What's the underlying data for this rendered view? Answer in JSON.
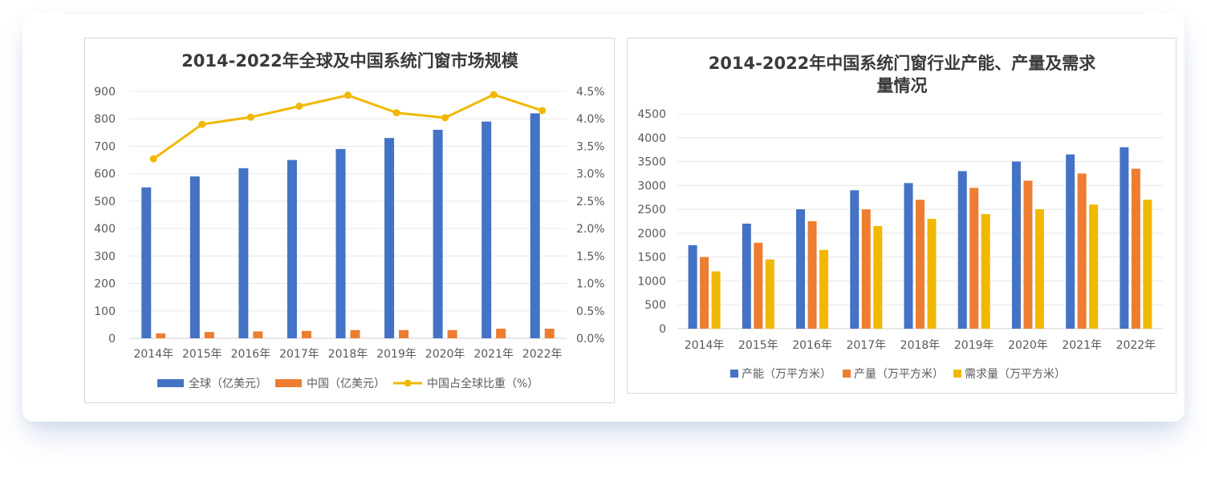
{
  "chart_data": [
    {
      "type": "bar",
      "title": "2014-2022年全球及中国系统门窗市场规模",
      "categories": [
        "2014年",
        "2015年",
        "2016年",
        "2017年",
        "2018年",
        "2019年",
        "2020年",
        "2021年",
        "2022年"
      ],
      "series": [
        {
          "name": "全球（亿美元）",
          "type": "bar",
          "axis": "left",
          "color": "#4472C4",
          "values": [
            550,
            590,
            620,
            650,
            690,
            730,
            760,
            790,
            820
          ]
        },
        {
          "name": "中国（亿美元）",
          "type": "bar",
          "axis": "left",
          "color": "#ED7D31",
          "values": [
            18,
            23,
            25,
            27,
            30,
            30,
            30,
            35,
            35
          ]
        },
        {
          "name": "中国占全球比重（%）",
          "type": "line",
          "axis": "right",
          "color": "#F0B800",
          "values": [
            3.27,
            3.9,
            4.03,
            4.23,
            4.43,
            4.11,
            4.02,
            4.44,
            4.15
          ]
        }
      ],
      "ylim": [
        0,
        900
      ],
      "y_ticks": [
        "0",
        "100",
        "200",
        "300",
        "400",
        "500",
        "600",
        "700",
        "800",
        "900"
      ],
      "y2lim": [
        0,
        4.5
      ],
      "y2_ticks": [
        "0.0%",
        "0.5%",
        "1.0%",
        "1.5%",
        "2.0%",
        "2.5%",
        "3.0%",
        "3.5%",
        "4.0%",
        "4.5%"
      ],
      "grid": true,
      "legend": "bottom"
    },
    {
      "type": "bar",
      "title": "2014-2022年中国系统门窗行业产能、产量及需求量情况",
      "title_lines": [
        "2014-2022年中国系统门窗行业产能、产量及需求",
        "量情况"
      ],
      "categories": [
        "2014年",
        "2015年",
        "2016年",
        "2017年",
        "2018年",
        "2019年",
        "2020年",
        "2021年",
        "2022年"
      ],
      "series": [
        {
          "name": "产能（万平方米）",
          "color": "#4472C4",
          "values": [
            1750,
            2200,
            2500,
            2900,
            3050,
            3300,
            3500,
            3650,
            3800
          ]
        },
        {
          "name": "产量（万平方米）",
          "color": "#ED7D31",
          "values": [
            1500,
            1800,
            2250,
            2500,
            2700,
            2950,
            3100,
            3250,
            3350
          ]
        },
        {
          "name": "需求量（万平方米）",
          "color": "#F0B800",
          "values": [
            1200,
            1450,
            1650,
            2150,
            2300,
            2400,
            2500,
            2600,
            2700
          ]
        }
      ],
      "ylim": [
        0,
        4500
      ],
      "y_ticks": [
        "0",
        "500",
        "1000",
        "1500",
        "2000",
        "2500",
        "3000",
        "3500",
        "4000",
        "4500"
      ],
      "grid": true,
      "legend": "bottom"
    }
  ]
}
